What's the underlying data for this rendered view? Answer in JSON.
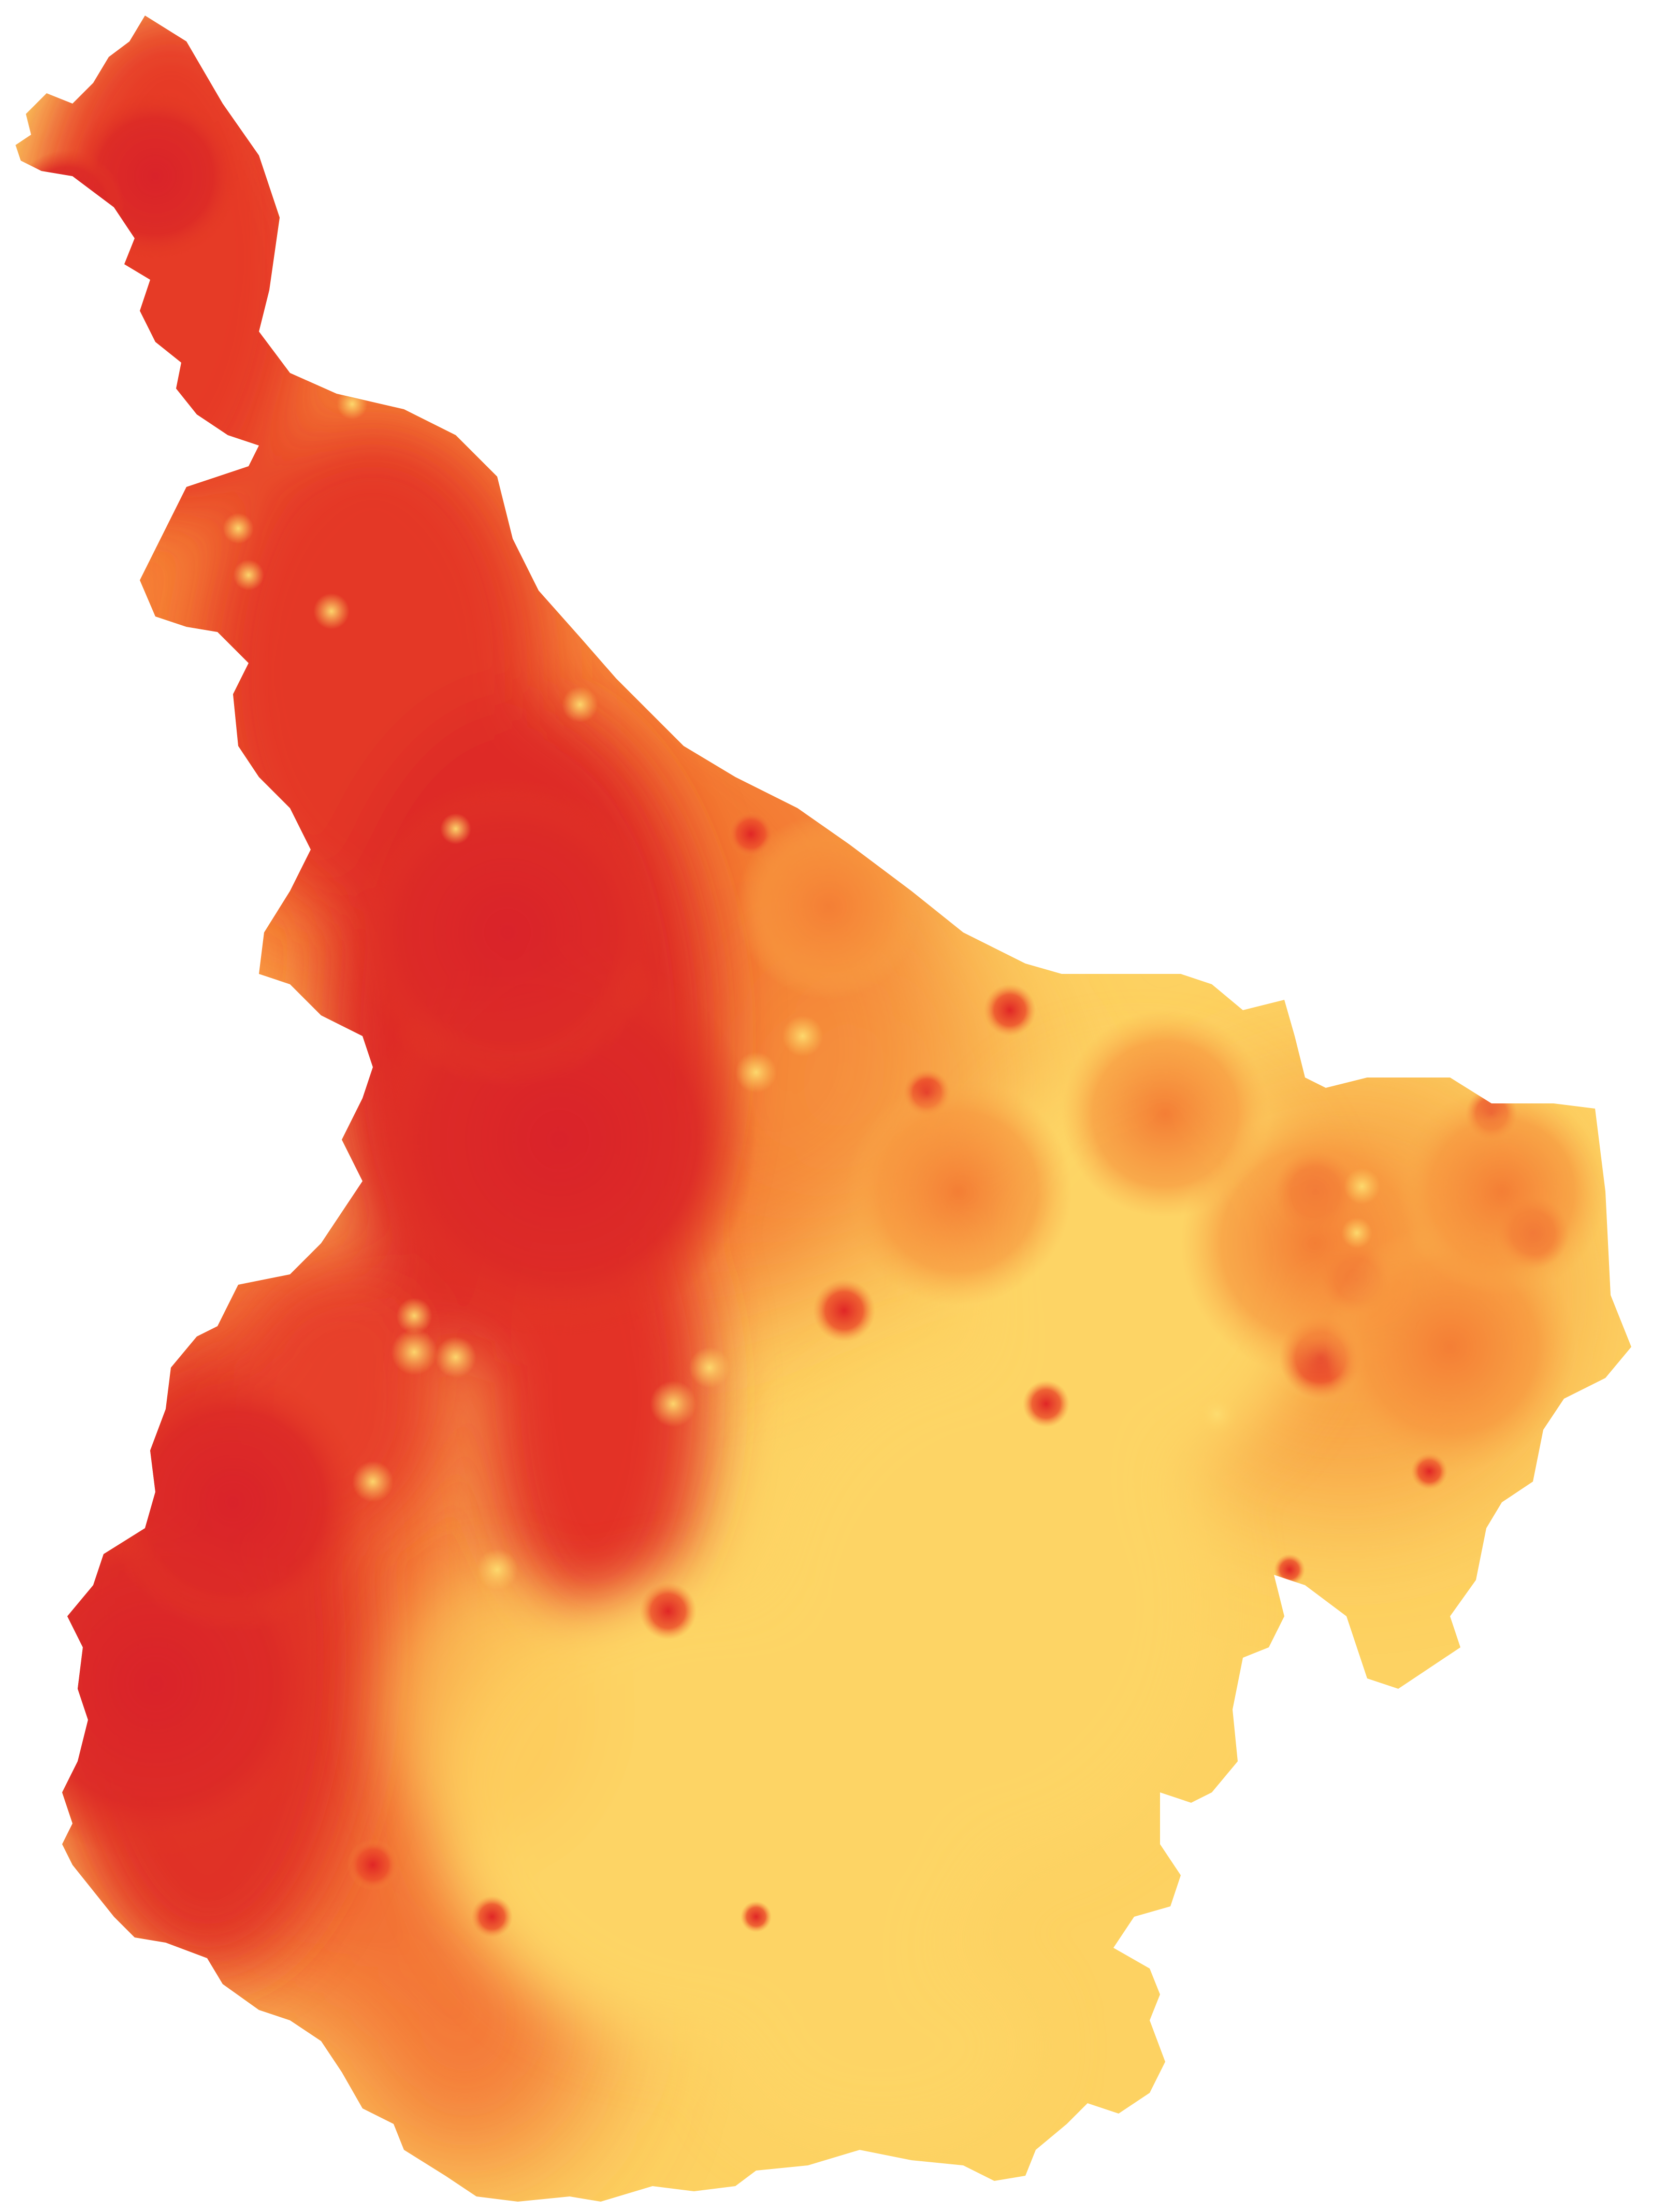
{
  "map": {
    "type": "heatmap",
    "color_scale": {
      "low": "#FDD262",
      "mid": "#F7883A",
      "high": "#D9232A"
    },
    "background": "#FFFFFF"
  }
}
